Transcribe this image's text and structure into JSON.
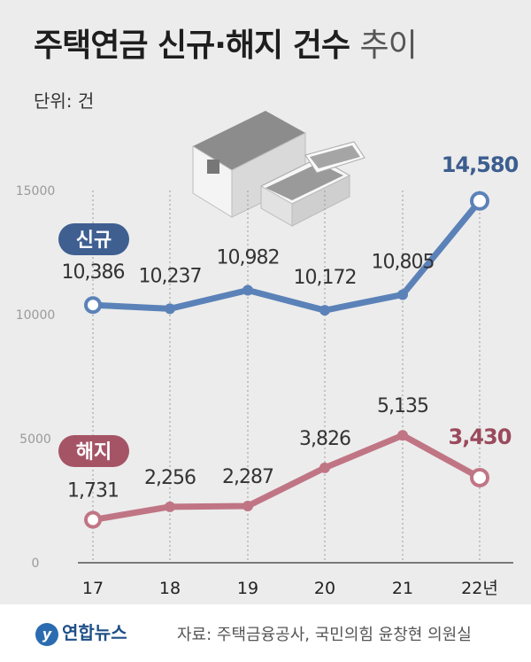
{
  "title_main": "주택연금 신규·해지 건수",
  "title_suffix": "추이",
  "unit": "단위: 건",
  "footer": {
    "logo": "연합뉴스",
    "source": "자료: 주택금융공사, 국민의힘 윤창현 의원실"
  },
  "chart_data": {
    "type": "line",
    "categories": [
      "17",
      "18",
      "19",
      "20",
      "21",
      "22년"
    ],
    "y_ticks": [
      "15000",
      "10000",
      "5000",
      "0"
    ],
    "ylim": [
      0,
      15000
    ],
    "series": [
      {
        "name": "신규",
        "color": "#5b82b8",
        "values": [
          10386,
          10237,
          10982,
          10172,
          10805,
          14580
        ],
        "labels": [
          "10,386",
          "10,237",
          "10,982",
          "10,172",
          "10,805",
          "14,580"
        ]
      },
      {
        "name": "해지",
        "color": "#c07585",
        "values": [
          1731,
          2256,
          2287,
          3826,
          5135,
          3430
        ],
        "labels": [
          "1,731",
          "2,256",
          "2,287",
          "3,826",
          "5,135",
          "3,430"
        ]
      }
    ]
  }
}
